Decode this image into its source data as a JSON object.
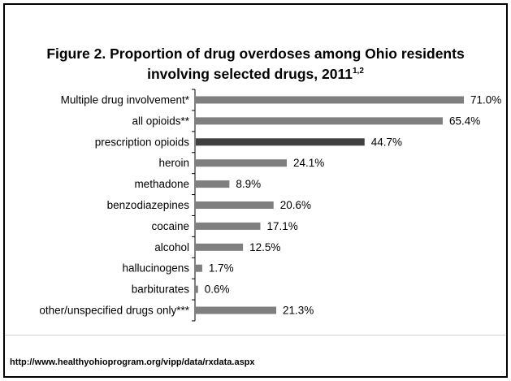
{
  "chart_data": {
    "type": "bar",
    "orientation": "horizontal",
    "title": "Figure 2. Proportion of drug overdoses among Ohio residents involving selected drugs, 2011",
    "title_line1": "Figure 2. Proportion of drug overdoses among Ohio residents",
    "title_line2": "involving selected drugs, 2011",
    "title_superscript": "1,2",
    "categories": [
      "Multiple drug involvement*",
      "all opioids**",
      "prescription opioids",
      "heroin",
      "methadone",
      "benzodiazepines",
      "cocaine",
      "alcohol",
      "hallucinogens",
      "barbiturates",
      "other/unspecified drugs only***"
    ],
    "values": [
      71.0,
      65.4,
      44.7,
      24.1,
      8.9,
      20.6,
      17.1,
      12.5,
      1.7,
      0.6,
      21.3
    ],
    "value_labels": [
      "71.0%",
      "65.4%",
      "44.7%",
      "24.1%",
      "8.9%",
      "20.6%",
      "17.1%",
      "12.5%",
      "1.7%",
      "0.6%",
      "21.3%"
    ],
    "xlim": [
      0,
      71
    ],
    "grid": false,
    "legend": "none",
    "bar_color": "#7f7f7f",
    "highlight_color": "#404040",
    "highlight_index": 2,
    "axis_color": "#000000"
  },
  "source": {
    "url": "http://www.healthyohioprogram.org/vipp/data/rxdata.aspx"
  }
}
